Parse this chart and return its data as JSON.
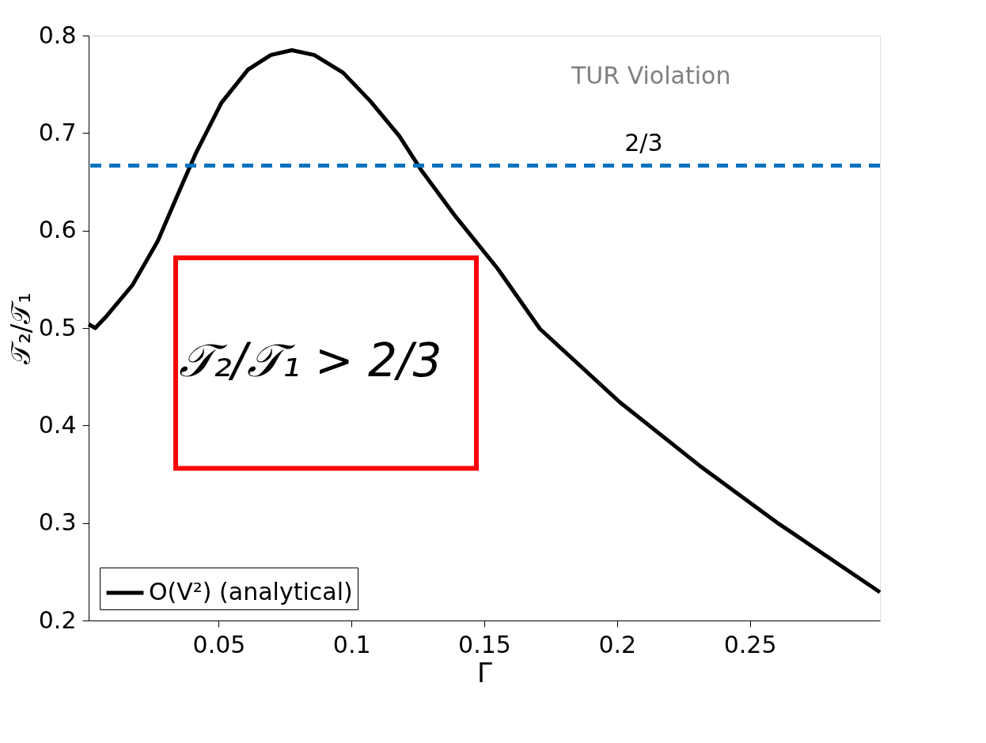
{
  "chart_data": {
    "type": "line",
    "xlabel": "Γ",
    "ylabel": "𝒯₂/𝒯₁",
    "x": [
      0.001,
      0.0035,
      0.008,
      0.0175,
      0.027,
      0.036,
      0.0415,
      0.051,
      0.061,
      0.0696,
      0.0775,
      0.086,
      0.0968,
      0.107,
      0.118,
      0.126,
      0.139,
      0.155,
      0.171,
      0.201,
      0.231,
      0.261,
      0.299
    ],
    "series": [
      {
        "name": "O(V²) (analytical)",
        "color": "#000000",
        "values": [
          0.504,
          0.5,
          0.513,
          0.544,
          0.589,
          0.646,
          0.68,
          0.731,
          0.765,
          0.78,
          0.785,
          0.78,
          0.762,
          0.733,
          0.697,
          0.663,
          0.615,
          0.561,
          0.499,
          0.424,
          0.359,
          0.299,
          0.229
        ]
      }
    ],
    "xlim": [
      0.001,
      0.299
    ],
    "ylim": [
      0.2,
      0.8
    ],
    "xticks": [
      0.05,
      0.1,
      0.15,
      0.2,
      0.25
    ],
    "yticks": [
      0.2,
      0.3,
      0.4,
      0.5,
      0.6,
      0.7,
      0.8
    ],
    "ref_lines": [
      {
        "axis": "y",
        "value": 0.666667,
        "color": "#0072bd",
        "line_style": "dashed"
      }
    ],
    "annotations": [
      "TUR Violation",
      "𝒯₂/𝒯₁ > 2/3",
      {
        "text": "2/3",
        "x": 0.21,
        "y": 0.666667
      }
    ],
    "legend": "bottom left",
    "grid": false,
    "marker": "none",
    "line_style": "solid"
  }
}
